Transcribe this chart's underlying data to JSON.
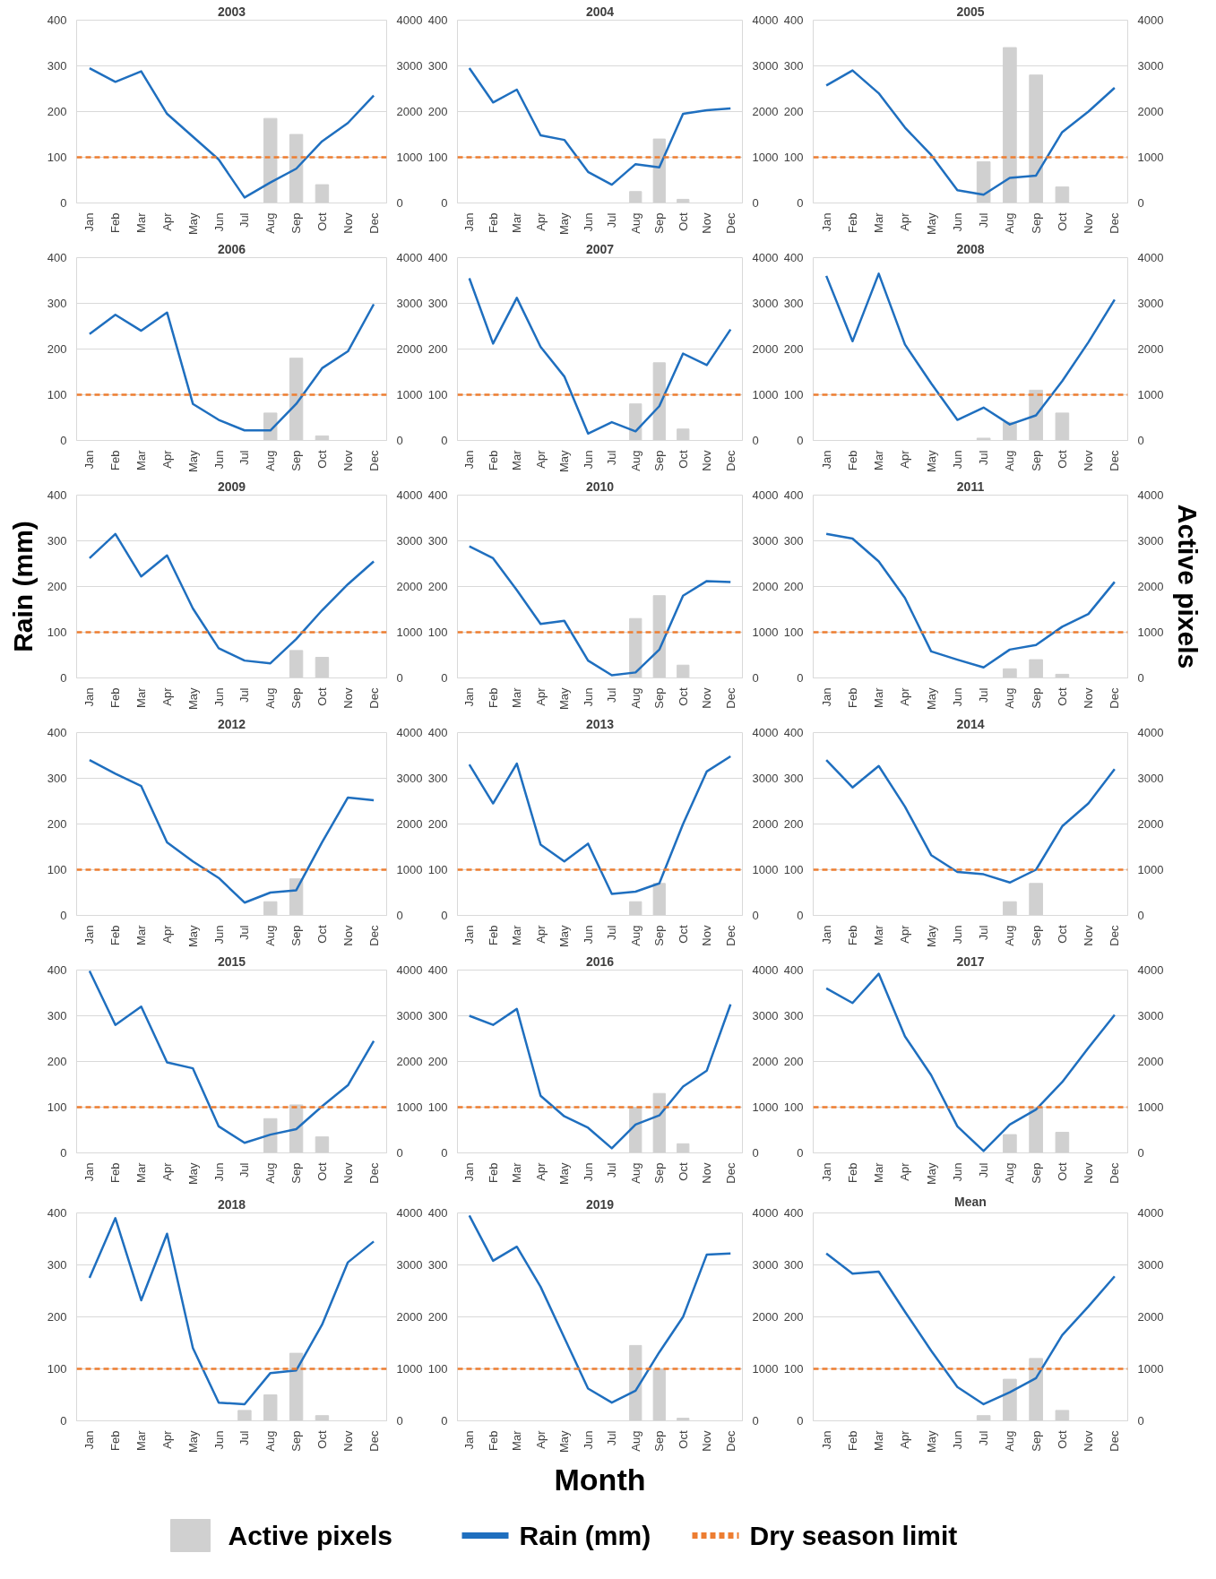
{
  "chart_data": [
    {
      "type": "bar",
      "title": "2003",
      "grid": "y",
      "marker": "none",
      "categories": [
        "Jan",
        "Feb",
        "Mar",
        "Apr",
        "May",
        "Jun",
        "Jul",
        "Aug",
        "Sep",
        "Oct",
        "Nov",
        "Dec"
      ],
      "ylim": [
        0,
        400
      ],
      "yticks": [
        0,
        100,
        200,
        300,
        400
      ],
      "y2lim": [
        0,
        4000
      ],
      "y2ticks": [
        0,
        1000,
        2000,
        3000,
        4000
      ],
      "series": [
        {
          "axis": "y2",
          "color": "#d0d0d0",
          "values": [
            0,
            0,
            0,
            0,
            0,
            0,
            0,
            1850,
            1500,
            400,
            0,
            0
          ]
        },
        {
          "type": "line",
          "color": "#1f6fbf",
          "values": [
            295,
            265,
            288,
            195,
            145,
            95,
            12,
            45,
            75,
            135,
            175,
            235
          ]
        }
      ],
      "ref_lines": [
        {
          "axis": "y",
          "value": 100,
          "color": "#ed7d31",
          "line_style": "dashed"
        }
      ]
    },
    {
      "type": "bar",
      "title": "2004",
      "grid": "y",
      "marker": "none",
      "categories": [
        "Jan",
        "Feb",
        "Mar",
        "Apr",
        "May",
        "Jun",
        "Jul",
        "Aug",
        "Sep",
        "Oct",
        "Nov",
        "Dec"
      ],
      "ylim": [
        0,
        400
      ],
      "yticks": [
        0,
        100,
        200,
        300,
        400
      ],
      "y2lim": [
        0,
        4000
      ],
      "y2ticks": [
        0,
        1000,
        2000,
        3000,
        4000
      ],
      "series": [
        {
          "type": "bar",
          "axis": "y2",
          "color": "#d0d0d0",
          "values": [
            0,
            0,
            0,
            0,
            0,
            0,
            0,
            250,
            1400,
            80,
            0,
            0
          ]
        },
        {
          "type": "line",
          "color": "#1f6fbf",
          "values": [
            295,
            220,
            248,
            148,
            138,
            68,
            40,
            85,
            78,
            195,
            203,
            207
          ]
        }
      ],
      "ref_lines": [
        {
          "axis": "y",
          "value": 100,
          "color": "#ed7d31",
          "line_style": "dashed"
        }
      ]
    },
    {
      "type": "bar",
      "title": "2005",
      "grid": "y",
      "marker": "none",
      "categories": [
        "Jan",
        "Feb",
        "Mar",
        "Apr",
        "May",
        "Jun",
        "Jul",
        "Aug",
        "Sep",
        "Oct",
        "Nov",
        "Dec"
      ],
      "ylim": [
        0,
        400
      ],
      "yticks": [
        0,
        100,
        200,
        300,
        400
      ],
      "y2lim": [
        0,
        4000
      ],
      "y2ticks": [
        0,
        1000,
        2000,
        3000,
        4000
      ],
      "series": [
        {
          "type": "bar",
          "axis": "y2",
          "color": "#d0d0d0",
          "values": [
            0,
            0,
            0,
            0,
            0,
            0,
            900,
            3400,
            2800,
            350,
            0,
            0
          ]
        },
        {
          "type": "line",
          "color": "#1f6fbf",
          "values": [
            257,
            290,
            240,
            165,
            105,
            28,
            18,
            55,
            60,
            155,
            200,
            252
          ]
        }
      ],
      "ref_lines": [
        {
          "axis": "y",
          "value": 100,
          "color": "#ed7d31",
          "line_style": "dashed"
        }
      ]
    },
    {
      "type": "bar",
      "title": "2006",
      "grid": "y",
      "marker": "none",
      "categories": [
        "Jan",
        "Feb",
        "Mar",
        "Apr",
        "May",
        "Jun",
        "Jul",
        "Aug",
        "Sep",
        "Oct",
        "Nov",
        "Dec"
      ],
      "ylim": [
        0,
        400
      ],
      "yticks": [
        0,
        100,
        200,
        300,
        400
      ],
      "y2lim": [
        0,
        4000
      ],
      "y2ticks": [
        0,
        1000,
        2000,
        3000,
        4000
      ],
      "series": [
        {
          "type": "bar",
          "axis": "y2",
          "color": "#d0d0d0",
          "values": [
            0,
            0,
            0,
            0,
            0,
            0,
            0,
            600,
            1800,
            100,
            0,
            0
          ]
        },
        {
          "type": "line",
          "color": "#1f6fbf",
          "values": [
            233,
            275,
            240,
            280,
            80,
            45,
            22,
            22,
            80,
            158,
            195,
            298
          ]
        }
      ],
      "ref_lines": [
        {
          "axis": "y",
          "value": 100,
          "color": "#ed7d31",
          "line_style": "dashed"
        }
      ]
    },
    {
      "type": "bar",
      "title": "2007",
      "grid": "y",
      "marker": "none",
      "categories": [
        "Jan",
        "Feb",
        "Mar",
        "Apr",
        "May",
        "Jun",
        "Jul",
        "Aug",
        "Sep",
        "Oct",
        "Nov",
        "Dec"
      ],
      "ylim": [
        0,
        400
      ],
      "yticks": [
        0,
        100,
        200,
        300,
        400
      ],
      "y2lim": [
        0,
        4000
      ],
      "y2ticks": [
        0,
        1000,
        2000,
        3000,
        4000
      ],
      "series": [
        {
          "type": "bar",
          "axis": "y2",
          "color": "#d0d0d0",
          "values": [
            0,
            0,
            0,
            0,
            0,
            0,
            0,
            800,
            1700,
            250,
            0,
            0
          ]
        },
        {
          "type": "line",
          "color": "#1f6fbf",
          "values": [
            355,
            212,
            312,
            205,
            140,
            15,
            40,
            20,
            75,
            190,
            165,
            243
          ]
        }
      ],
      "ref_lines": [
        {
          "axis": "y",
          "value": 100,
          "color": "#ed7d31",
          "line_style": "dashed"
        }
      ]
    },
    {
      "type": "bar",
      "title": "2008",
      "grid": "y",
      "marker": "none",
      "categories": [
        "Jan",
        "Feb",
        "Mar",
        "Apr",
        "May",
        "Jun",
        "Jul",
        "Aug",
        "Sep",
        "Oct",
        "Nov",
        "Dec"
      ],
      "ylim": [
        0,
        400
      ],
      "yticks": [
        0,
        100,
        200,
        300,
        400
      ],
      "y2lim": [
        0,
        4000
      ],
      "y2ticks": [
        0,
        1000,
        2000,
        3000,
        4000
      ],
      "series": [
        {
          "type": "bar",
          "axis": "y2",
          "color": "#d0d0d0",
          "values": [
            0,
            0,
            0,
            0,
            0,
            0,
            50,
            400,
            1100,
            600,
            0,
            0
          ]
        },
        {
          "type": "line",
          "color": "#1f6fbf",
          "values": [
            360,
            217,
            365,
            210,
            125,
            45,
            72,
            35,
            55,
            130,
            215,
            308
          ]
        }
      ],
      "ref_lines": [
        {
          "axis": "y",
          "value": 100,
          "color": "#ed7d31",
          "line_style": "dashed"
        }
      ]
    },
    {
      "type": "bar",
      "title": "2009",
      "ylabel": "Rain (mm)",
      "grid": "y",
      "marker": "none",
      "categories": [
        "Jan",
        "Feb",
        "Mar",
        "Apr",
        "May",
        "Jun",
        "Jul",
        "Aug",
        "Sep",
        "Oct",
        "Nov",
        "Dec"
      ],
      "ylim": [
        0,
        400
      ],
      "yticks": [
        0,
        100,
        200,
        300,
        400
      ],
      "y2lim": [
        0,
        4000
      ],
      "y2ticks": [
        0,
        1000,
        2000,
        3000,
        4000
      ],
      "series": [
        {
          "type": "bar",
          "axis": "y2",
          "color": "#d0d0d0",
          "values": [
            0,
            0,
            0,
            0,
            0,
            0,
            0,
            0,
            600,
            450,
            0,
            0
          ]
        },
        {
          "type": "line",
          "color": "#1f6fbf",
          "values": [
            262,
            315,
            222,
            268,
            152,
            65,
            38,
            32,
            85,
            148,
            205,
            255
          ]
        }
      ],
      "ref_lines": [
        {
          "axis": "y",
          "value": 100,
          "color": "#ed7d31",
          "line_style": "dashed"
        }
      ]
    },
    {
      "type": "bar",
      "title": "2010",
      "grid": "y",
      "marker": "none",
      "categories": [
        "Jan",
        "Feb",
        "Mar",
        "Apr",
        "May",
        "Jun",
        "Jul",
        "Aug",
        "Sep",
        "Oct",
        "Nov",
        "Dec"
      ],
      "ylim": [
        0,
        400
      ],
      "yticks": [
        0,
        100,
        200,
        300,
        400
      ],
      "y2lim": [
        0,
        4000
      ],
      "y2ticks": [
        0,
        1000,
        2000,
        3000,
        4000
      ],
      "series": [
        {
          "type": "bar",
          "axis": "y2",
          "color": "#d0d0d0",
          "values": [
            0,
            0,
            0,
            0,
            0,
            0,
            0,
            1300,
            1800,
            280,
            0,
            0
          ]
        },
        {
          "type": "line",
          "color": "#1f6fbf",
          "values": [
            288,
            262,
            192,
            118,
            125,
            38,
            6,
            12,
            62,
            180,
            212,
            210
          ]
        }
      ],
      "ref_lines": [
        {
          "axis": "y",
          "value": 100,
          "color": "#ed7d31",
          "line_style": "dashed"
        }
      ]
    },
    {
      "type": "bar",
      "title": "2011",
      "y2label": "Active pixels",
      "grid": "y",
      "marker": "none",
      "categories": [
        "Jan",
        "Feb",
        "Mar",
        "Apr",
        "May",
        "Jun",
        "Jul",
        "Aug",
        "Sep",
        "Oct",
        "Nov",
        "Dec"
      ],
      "ylim": [
        0,
        400
      ],
      "yticks": [
        0,
        100,
        200,
        300,
        400
      ],
      "y2lim": [
        0,
        4000
      ],
      "y2ticks": [
        0,
        1000,
        2000,
        3000,
        4000
      ],
      "series": [
        {
          "type": "bar",
          "axis": "y2",
          "color": "#d0d0d0",
          "values": [
            0,
            0,
            0,
            0,
            0,
            0,
            0,
            200,
            400,
            80,
            0,
            0
          ]
        },
        {
          "type": "line",
          "color": "#1f6fbf",
          "values": [
            315,
            305,
            255,
            175,
            58,
            40,
            23,
            62,
            72,
            112,
            140,
            210
          ]
        }
      ],
      "ref_lines": [
        {
          "axis": "y",
          "value": 100,
          "color": "#ed7d31",
          "line_style": "dashed"
        }
      ]
    },
    {
      "type": "bar",
      "title": "2012",
      "grid": "y",
      "marker": "none",
      "categories": [
        "Jan",
        "Feb",
        "Mar",
        "Apr",
        "May",
        "Jun",
        "Jul",
        "Aug",
        "Sep",
        "Oct",
        "Nov",
        "Dec"
      ],
      "ylim": [
        0,
        400
      ],
      "yticks": [
        0,
        100,
        200,
        300,
        400
      ],
      "y2lim": [
        0,
        4000
      ],
      "y2ticks": [
        0,
        1000,
        2000,
        3000,
        4000
      ],
      "series": [
        {
          "type": "bar",
          "axis": "y2",
          "color": "#d0d0d0",
          "values": [
            0,
            0,
            0,
            0,
            0,
            0,
            0,
            300,
            800,
            0,
            0,
            0
          ]
        },
        {
          "type": "line",
          "color": "#1f6fbf",
          "values": [
            340,
            310,
            283,
            160,
            118,
            82,
            28,
            50,
            55,
            160,
            258,
            252
          ]
        }
      ],
      "ref_lines": [
        {
          "axis": "y",
          "value": 100,
          "color": "#ed7d31",
          "line_style": "dashed"
        }
      ]
    },
    {
      "type": "bar",
      "title": "2013",
      "grid": "y",
      "marker": "none",
      "categories": [
        "Jan",
        "Feb",
        "Mar",
        "Apr",
        "May",
        "Jun",
        "Jul",
        "Aug",
        "Sep",
        "Oct",
        "Nov",
        "Dec"
      ],
      "ylim": [
        0,
        400
      ],
      "yticks": [
        0,
        100,
        200,
        300,
        400
      ],
      "y2lim": [
        0,
        4000
      ],
      "y2ticks": [
        0,
        1000,
        2000,
        3000,
        4000
      ],
      "series": [
        {
          "type": "bar",
          "axis": "y2",
          "color": "#d0d0d0",
          "values": [
            0,
            0,
            0,
            0,
            0,
            0,
            0,
            300,
            700,
            0,
            0,
            0
          ]
        },
        {
          "type": "line",
          "color": "#1f6fbf",
          "values": [
            330,
            245,
            332,
            155,
            118,
            157,
            47,
            52,
            70,
            200,
            315,
            348
          ]
        }
      ],
      "ref_lines": [
        {
          "axis": "y",
          "value": 100,
          "color": "#ed7d31",
          "line_style": "dashed"
        }
      ]
    },
    {
      "type": "bar",
      "title": "2014",
      "grid": "y",
      "marker": "none",
      "categories": [
        "Jan",
        "Feb",
        "Mar",
        "Apr",
        "May",
        "Jun",
        "Jul",
        "Aug",
        "Sep",
        "Oct",
        "Nov",
        "Dec"
      ],
      "ylim": [
        0,
        400
      ],
      "yticks": [
        0,
        100,
        200,
        300,
        400
      ],
      "y2lim": [
        0,
        4000
      ],
      "y2ticks": [
        0,
        1000,
        2000,
        3000,
        4000
      ],
      "series": [
        {
          "type": "bar",
          "axis": "y2",
          "color": "#d0d0d0",
          "values": [
            0,
            0,
            0,
            0,
            0,
            0,
            0,
            300,
            700,
            0,
            0,
            0
          ]
        },
        {
          "type": "line",
          "color": "#1f6fbf",
          "values": [
            340,
            280,
            327,
            238,
            132,
            95,
            90,
            72,
            100,
            195,
            245,
            320
          ]
        }
      ],
      "ref_lines": [
        {
          "axis": "y",
          "value": 100,
          "color": "#ed7d31",
          "line_style": "dashed"
        }
      ]
    },
    {
      "type": "bar",
      "title": "2015",
      "grid": "y",
      "marker": "none",
      "categories": [
        "Jan",
        "Feb",
        "Mar",
        "Apr",
        "May",
        "Jun",
        "Jul",
        "Aug",
        "Sep",
        "Oct",
        "Nov",
        "Dec"
      ],
      "ylim": [
        0,
        400
      ],
      "yticks": [
        0,
        100,
        200,
        300,
        400
      ],
      "y2lim": [
        0,
        4000
      ],
      "y2ticks": [
        0,
        1000,
        2000,
        3000,
        4000
      ],
      "series": [
        {
          "type": "bar",
          "axis": "y2",
          "color": "#d0d0d0",
          "values": [
            0,
            0,
            0,
            0,
            0,
            0,
            0,
            750,
            1050,
            350,
            0,
            0
          ]
        },
        {
          "type": "line",
          "color": "#1f6fbf",
          "values": [
            398,
            280,
            320,
            198,
            185,
            58,
            22,
            40,
            52,
            102,
            148,
            245
          ]
        }
      ],
      "ref_lines": [
        {
          "axis": "y",
          "value": 100,
          "color": "#ed7d31",
          "line_style": "dashed"
        }
      ]
    },
    {
      "type": "bar",
      "title": "2016",
      "grid": "y",
      "marker": "none",
      "categories": [
        "Jan",
        "Feb",
        "Mar",
        "Apr",
        "May",
        "Jun",
        "Jul",
        "Aug",
        "Sep",
        "Oct",
        "Nov",
        "Dec"
      ],
      "ylim": [
        0,
        400
      ],
      "yticks": [
        0,
        100,
        200,
        300,
        400
      ],
      "y2lim": [
        0,
        4000
      ],
      "y2ticks": [
        0,
        1000,
        2000,
        3000,
        4000
      ],
      "series": [
        {
          "type": "bar",
          "axis": "y2",
          "color": "#d0d0d0",
          "values": [
            0,
            0,
            0,
            0,
            0,
            0,
            0,
            1000,
            1300,
            200,
            0,
            0
          ]
        },
        {
          "type": "line",
          "color": "#1f6fbf",
          "values": [
            300,
            280,
            315,
            125,
            80,
            55,
            10,
            62,
            82,
            145,
            180,
            325
          ]
        }
      ],
      "ref_lines": [
        {
          "axis": "y",
          "value": 100,
          "color": "#ed7d31",
          "line_style": "dashed"
        }
      ]
    },
    {
      "type": "bar",
      "title": "2017",
      "grid": "y",
      "marker": "none",
      "categories": [
        "Jan",
        "Feb",
        "Mar",
        "Apr",
        "May",
        "Jun",
        "Jul",
        "Aug",
        "Sep",
        "Oct",
        "Nov",
        "Dec"
      ],
      "ylim": [
        0,
        400
      ],
      "yticks": [
        0,
        100,
        200,
        300,
        400
      ],
      "y2lim": [
        0,
        4000
      ],
      "y2ticks": [
        0,
        1000,
        2000,
        3000,
        4000
      ],
      "series": [
        {
          "type": "bar",
          "axis": "y2",
          "color": "#d0d0d0",
          "values": [
            0,
            0,
            0,
            0,
            0,
            0,
            0,
            400,
            1000,
            450,
            0,
            0
          ]
        },
        {
          "type": "line",
          "color": "#1f6fbf",
          "values": [
            360,
            328,
            392,
            255,
            170,
            58,
            4,
            62,
            95,
            155,
            230,
            302
          ]
        }
      ],
      "ref_lines": [
        {
          "axis": "y",
          "value": 100,
          "color": "#ed7d31",
          "line_style": "dashed"
        }
      ]
    },
    {
      "type": "bar",
      "title": "2018",
      "grid": "y",
      "marker": "none",
      "categories": [
        "Jan",
        "Feb",
        "Mar",
        "Apr",
        "May",
        "Jun",
        "Jul",
        "Aug",
        "Sep",
        "Oct",
        "Nov",
        "Dec"
      ],
      "ylim": [
        0,
        400
      ],
      "yticks": [
        0,
        100,
        200,
        300,
        400
      ],
      "y2lim": [
        0,
        4000
      ],
      "y2ticks": [
        0,
        1000,
        2000,
        3000,
        4000
      ],
      "series": [
        {
          "type": "bar",
          "axis": "y2",
          "color": "#d0d0d0",
          "values": [
            0,
            0,
            0,
            0,
            0,
            0,
            200,
            500,
            1300,
            100,
            0,
            0
          ]
        },
        {
          "type": "line",
          "color": "#1f6fbf",
          "values": [
            275,
            390,
            232,
            360,
            140,
            35,
            32,
            92,
            97,
            185,
            305,
            345
          ]
        }
      ],
      "ref_lines": [
        {
          "axis": "y",
          "value": 100,
          "color": "#ed7d31",
          "line_style": "dashed"
        }
      ]
    },
    {
      "type": "bar",
      "title": "2019",
      "xlabel": "Month",
      "legend": "bottom",
      "grid": "y",
      "marker": "none",
      "categories": [
        "Jan",
        "Feb",
        "Mar",
        "Apr",
        "May",
        "Jun",
        "Jul",
        "Aug",
        "Sep",
        "Oct",
        "Nov",
        "Dec"
      ],
      "ylim": [
        0,
        400
      ],
      "yticks": [
        0,
        100,
        200,
        300,
        400
      ],
      "y2lim": [
        0,
        4000
      ],
      "y2ticks": [
        0,
        1000,
        2000,
        3000,
        4000
      ],
      "series": [
        {
          "name": "Active pixels",
          "axis": "y2",
          "color": "#d0d0d0",
          "values": [
            0,
            0,
            0,
            0,
            0,
            0,
            0,
            1450,
            1000,
            50,
            0,
            0
          ]
        },
        {
          "name": "Rain (mm)",
          "type": "line",
          "color": "#1f6fbf",
          "values": [
            395,
            308,
            335,
            258,
            160,
            62,
            35,
            58,
            132,
            200,
            320,
            322
          ]
        }
      ],
      "ref_lines": [
        {
          "axis": "y",
          "value": 100,
          "label": "Dry season limit",
          "color": "#ed7d31",
          "line_style": "dashed"
        }
      ]
    },
    {
      "type": "bar",
      "title": "Mean",
      "grid": "y",
      "marker": "none",
      "categories": [
        "Jan",
        "Feb",
        "Mar",
        "Apr",
        "May",
        "Jun",
        "Jul",
        "Aug",
        "Sep",
        "Oct",
        "Nov",
        "Dec"
      ],
      "ylim": [
        0,
        400
      ],
      "yticks": [
        0,
        100,
        200,
        300,
        400
      ],
      "y2lim": [
        0,
        4000
      ],
      "y2ticks": [
        0,
        1000,
        2000,
        3000,
        4000
      ],
      "series": [
        {
          "type": "bar",
          "axis": "y2",
          "color": "#d0d0d0",
          "values": [
            0,
            0,
            0,
            0,
            0,
            0,
            100,
            800,
            1200,
            200,
            0,
            0
          ]
        },
        {
          "type": "line",
          "color": "#1f6fbf",
          "values": [
            322,
            283,
            287,
            210,
            135,
            65,
            32,
            55,
            82,
            165,
            220,
            278
          ]
        }
      ],
      "ref_lines": [
        {
          "axis": "y",
          "value": 100,
          "color": "#ed7d31",
          "line_style": "dashed"
        }
      ]
    }
  ]
}
